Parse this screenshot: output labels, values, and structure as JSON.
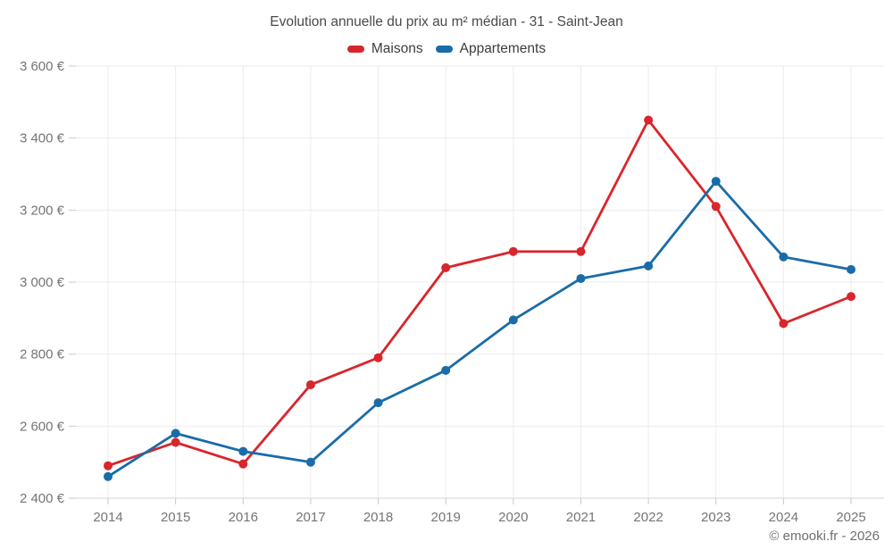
{
  "header": {
    "title": "Evolution annuelle du prix au m² médian - 31 - Saint-Jean"
  },
  "legend": [
    {
      "label": "Maisons",
      "color": "#d8262c"
    },
    {
      "label": "Appartements",
      "color": "#1a6ca8"
    }
  ],
  "footer": {
    "copyright": "© emooki.fr - 2026"
  },
  "colors": {
    "maisons": "#d8262c",
    "appartements": "#1a6ca8",
    "gridline": "#ebebeb",
    "axis_line": "#d4d4d4",
    "tick": "#c9c9c9",
    "axis_text": "#757575"
  },
  "chart_data": {
    "type": "line",
    "title": "Evolution annuelle du prix au m² médian - 31 - Saint-Jean",
    "categories": [
      "2014",
      "2015",
      "2016",
      "2017",
      "2018",
      "2019",
      "2020",
      "2021",
      "2022",
      "2023",
      "2024",
      "2025"
    ],
    "series": [
      {
        "name": "Maisons",
        "color": "#d8262c",
        "values": [
          2490,
          2555,
          2495,
          2715,
          2790,
          3040,
          3085,
          3085,
          3450,
          3210,
          2885,
          2960
        ]
      },
      {
        "name": "Appartements",
        "color": "#1a6ca8",
        "values": [
          2460,
          2580,
          2530,
          2500,
          2665,
          2755,
          2895,
          3010,
          3045,
          3280,
          3070,
          3035
        ]
      }
    ],
    "xlabel": "",
    "ylabel": "",
    "ylim": [
      2400,
      3600
    ],
    "y_ticks": [
      2400,
      2600,
      2800,
      3000,
      3200,
      3400,
      3600
    ],
    "y_tick_labels": [
      "2 400 €",
      "2 600 €",
      "2 800 €",
      "3 000 €",
      "3 200 €",
      "3 400 €",
      "3 600 €"
    ],
    "grid": true,
    "legend_position": "top",
    "unit": "€"
  }
}
